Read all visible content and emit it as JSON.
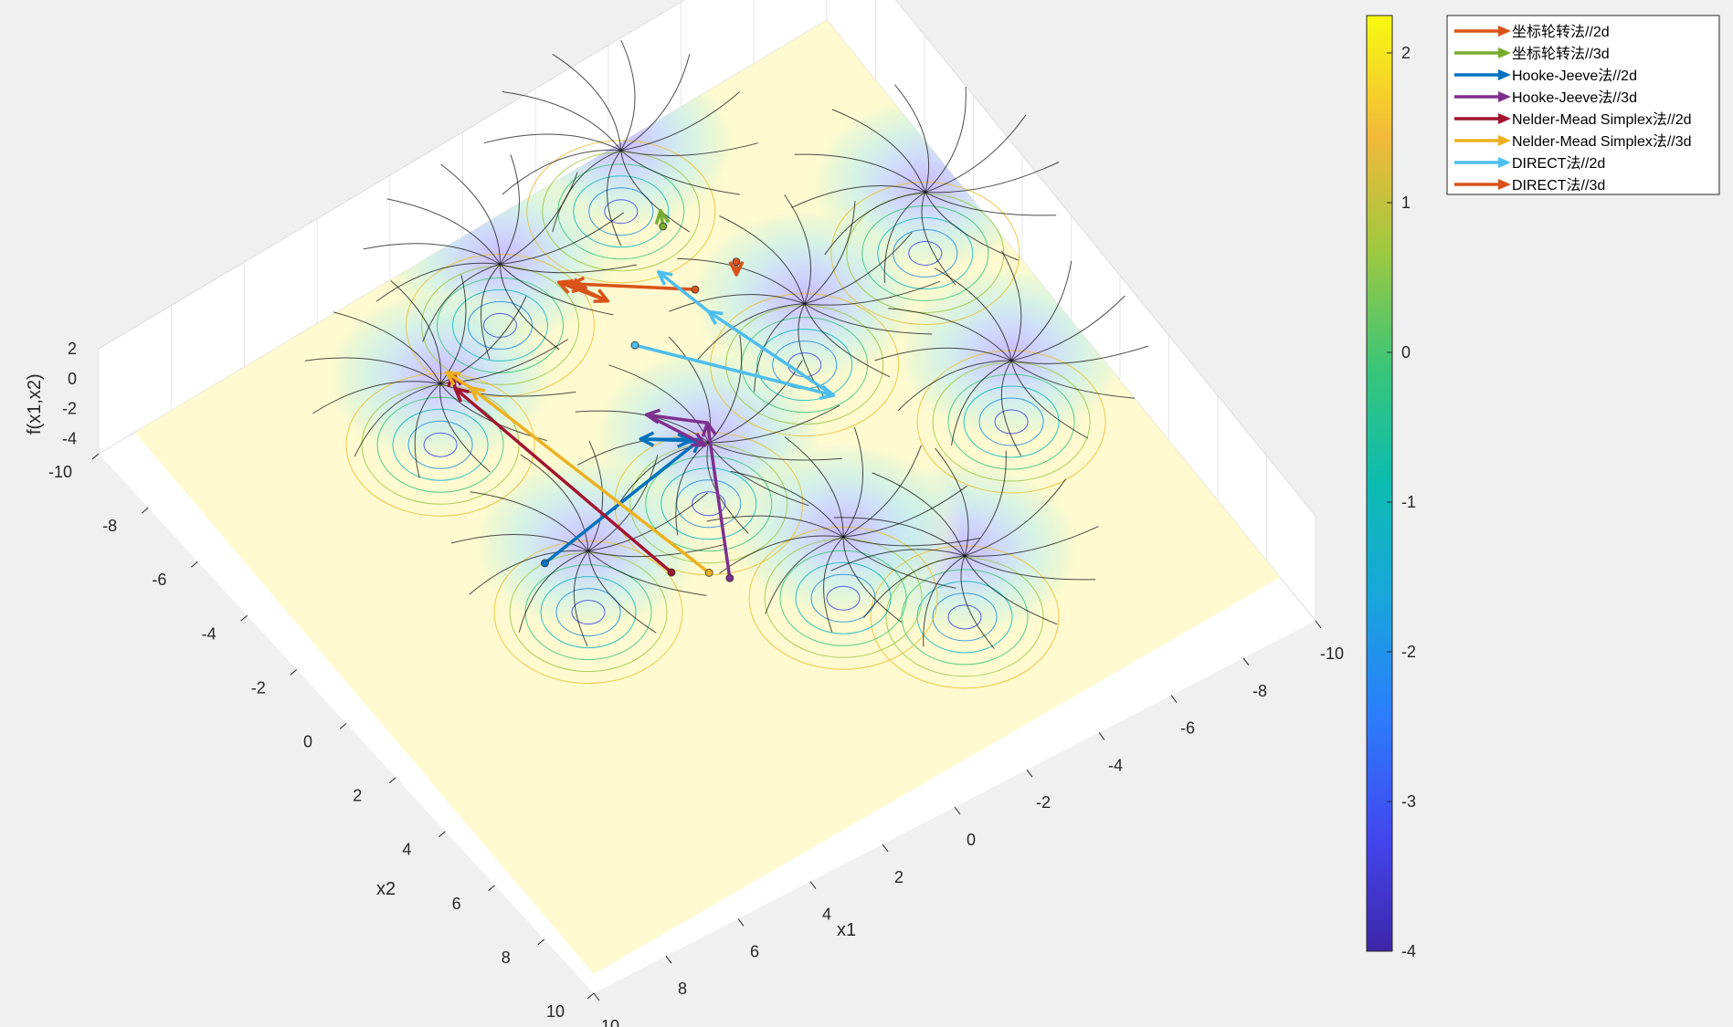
{
  "chart_data": {
    "type": "surface-contour-3d",
    "xlabel": "x1",
    "ylabel": "x2",
    "zlabel": "f(x1,x2)",
    "x_ticks": [
      "-10",
      "-8",
      "-6",
      "-4",
      "-2",
      "0",
      "2",
      "4",
      "6",
      "8",
      "10"
    ],
    "y_ticks": [
      "-10",
      "-8",
      "-6",
      "-4",
      "-2",
      "0",
      "2",
      "4",
      "6",
      "8",
      "10"
    ],
    "z_ticks": [
      "2",
      "0",
      "-2",
      "-4"
    ],
    "xlim": [
      -10,
      10
    ],
    "ylim": [
      -10,
      10
    ],
    "zlim": [
      -5,
      2
    ],
    "colorbar": {
      "ticks": [
        "2",
        "1",
        "0",
        "-1",
        "-2",
        "-3",
        "-4"
      ],
      "range": [
        -4,
        2.25
      ]
    },
    "minima": [
      [
        -3,
        -8
      ],
      [
        -8,
        -3
      ],
      [
        1,
        -7
      ],
      [
        -4,
        -2
      ],
      [
        4,
        -5
      ],
      [
        -7,
        2
      ],
      [
        0,
        0
      ],
      [
        4,
        1
      ],
      [
        -3,
        6
      ],
      [
        -1,
        4
      ]
    ],
    "legend": [
      {
        "label": "坐标轮转法//2d",
        "color": "#D95319"
      },
      {
        "label": "坐标轮转法//3d",
        "color": "#77AC30"
      },
      {
        "label": "Hooke-Jeeve法//2d",
        "color": "#0072BD"
      },
      {
        "label": "Hooke-Jeeve法//3d",
        "color": "#7E2F8E"
      },
      {
        "label": "Nelder-Mead Simplex法//2d",
        "color": "#A2142F"
      },
      {
        "label": "Nelder-Mead Simplex法//3d",
        "color": "#EDB120"
      },
      {
        "label": "DIRECT法//2d",
        "color": "#4DBEEE"
      },
      {
        "label": "DIRECT法//3d",
        "color": "#D95319"
      }
    ],
    "paths": [
      {
        "series": "坐标轮转法//2d",
        "color": "#D95319",
        "points": [
          [
            -2.0,
            -3.5
          ],
          [
            0.2,
            -5.3
          ],
          [
            -0.2,
            -4.4
          ],
          [
            0.4,
            -5.5
          ],
          [
            0,
            -5
          ]
        ]
      },
      {
        "series": "坐标轮转法//3d",
        "color": "#77AC30",
        "points": [
          [
            -2.4,
            -5.4
          ],
          [
            -2.6,
            -5.8
          ]
        ]
      },
      {
        "series": "Hooke-Jeeve法//2d",
        "color": "#0072BD",
        "points": [
          [
            5.2,
            1.0
          ],
          [
            0.3,
            0.1
          ],
          [
            1.4,
            -0.7
          ],
          [
            0.5,
            0.0
          ]
        ]
      },
      {
        "series": "Hooke-Jeeve法//3d",
        "color": "#7E2F8E",
        "points": [
          [
            2.0,
            3.8
          ],
          [
            -0.1,
            -0.2
          ],
          [
            0.9,
            -1.2
          ],
          [
            0.3,
            0.3
          ]
        ]
      },
      {
        "series": "Nelder-Mead Simplex法//2d",
        "color": "#A2142F",
        "points": [
          [
            3.0,
            2.9
          ],
          [
            4.0,
            -4.4
          ],
          [
            3.8,
            -4.8
          ]
        ]
      },
      {
        "series": "Nelder-Mead Simplex法//3d",
        "color": "#EDB120",
        "points": [
          [
            2.3,
            3.4
          ],
          [
            3.7,
            -4.2
          ],
          [
            3.9,
            -4.9
          ]
        ]
      },
      {
        "series": "DIRECT法//2d",
        "color": "#4DBEEE",
        "points": [
          [
            0.0,
            -3.0
          ],
          [
            -2.9,
            0.8
          ],
          [
            -1.9,
            -2.8
          ],
          [
            -1.6,
            -4.4
          ]
        ]
      },
      {
        "series": "DIRECT法//3d",
        "color": "#D95319",
        "points": [
          [
            -3.2,
            -3.6
          ],
          [
            -3.0,
            -3.3
          ]
        ]
      }
    ]
  }
}
